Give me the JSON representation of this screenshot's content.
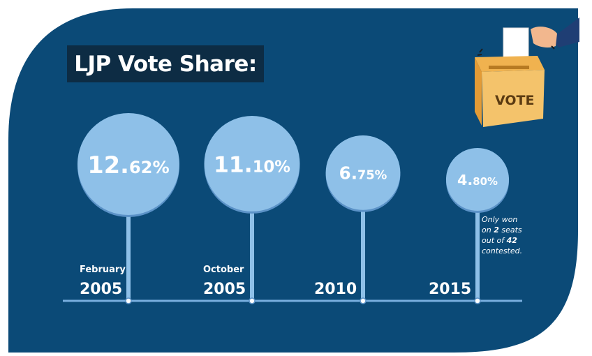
{
  "title": "LJP Vote Share:",
  "vote_label": "VOTE",
  "note": {
    "line1": "Only won",
    "line2_pre": "on ",
    "line2_num": "2",
    "line2_post": " seats",
    "line3_pre": "out of ",
    "line3_num": "42",
    "line4": "contested."
  },
  "colors": {
    "background": "#0b4a77",
    "bubble": "#8ec0e8",
    "bubble_rim": "#5b92c7",
    "title_bg": "#0d2c44",
    "axis": "#78aede"
  },
  "chart_data": {
    "type": "bubble-timeline",
    "title": "LJP Vote Share:",
    "categories": [
      "February 2005",
      "October 2005",
      "2010",
      "2015"
    ],
    "series": [
      {
        "values": [
          12.62,
          11.1,
          6.75,
          4.8
        ],
        "value_labels": [
          {
            "int": "12.",
            "dec": "62%"
          },
          {
            "int": "11.",
            "dec": "10%"
          },
          {
            "int": "6.",
            "dec": "75%"
          },
          {
            "int": "4.",
            "dec": "80%"
          }
        ]
      }
    ],
    "x_labels": [
      {
        "month": "February",
        "year": "2005"
      },
      {
        "month": "October",
        "year": "2005"
      },
      {
        "month": "",
        "year": "2010"
      },
      {
        "month": "",
        "year": "2015"
      }
    ]
  }
}
